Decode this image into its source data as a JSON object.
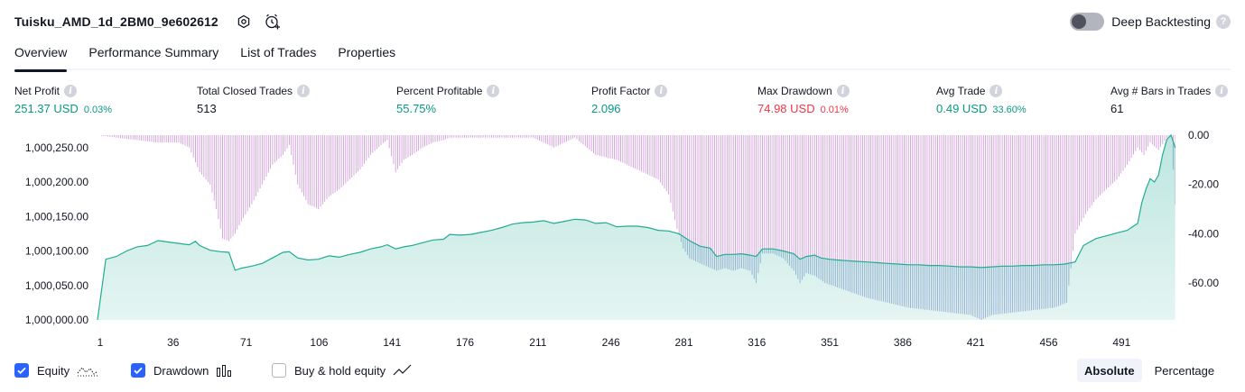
{
  "header": {
    "strategy_name": "Tuisku_AMD_1d_2BM0_9e602612",
    "deep_backtesting_label": "Deep Backtesting"
  },
  "tabs": [
    {
      "label": "Overview",
      "active": true
    },
    {
      "label": "Performance Summary",
      "active": false
    },
    {
      "label": "List of Trades",
      "active": false
    },
    {
      "label": "Properties",
      "active": false
    }
  ],
  "metrics": {
    "net_profit": {
      "label": "Net Profit",
      "value": "251.37 USD",
      "pct": "0.03%"
    },
    "total_closed_trades": {
      "label": "Total Closed Trades",
      "value": "513"
    },
    "percent_profitable": {
      "label": "Percent Profitable",
      "value": "55.75%"
    },
    "profit_factor": {
      "label": "Profit Factor",
      "value": "2.096"
    },
    "max_drawdown": {
      "label": "Max Drawdown",
      "value": "74.98 USD",
      "pct": "0.01%"
    },
    "avg_trade": {
      "label": "Avg Trade",
      "value": "0.49 USD",
      "pct": "33.60%"
    },
    "avg_bars": {
      "label": "Avg # Bars in Trades",
      "value": "61"
    }
  },
  "legend": {
    "equity": "Equity",
    "drawdown": "Drawdown",
    "buy_hold": "Buy & hold equity"
  },
  "scale_toggle": {
    "absolute": "Absolute",
    "percentage": "Percentage",
    "selected": "absolute"
  },
  "colors": {
    "green": "#089981",
    "red": "#f23645",
    "equity_line": "#22ab94",
    "equity_fill": "#22ab94",
    "drawdown_bar": "#ce93d8",
    "accent": "#2962ff"
  },
  "chart_data": {
    "type": "area",
    "x_ticks": [
      1,
      36,
      71,
      106,
      141,
      176,
      211,
      246,
      281,
      316,
      351,
      386,
      421,
      456,
      491
    ],
    "x_range": [
      1,
      513
    ],
    "left_axis": {
      "ticks": [
        1000000,
        1000050,
        1000100,
        1000150,
        1000200,
        1000250
      ],
      "tick_labels": [
        "1,000,000.00",
        "1,000,050.00",
        "1,000,100.00",
        "1,000,150.00",
        "1,000,200.00",
        "1,000,250.00"
      ],
      "range": [
        1000000,
        1000268
      ]
    },
    "right_axis": {
      "ticks": [
        0,
        -20,
        -40,
        -60
      ],
      "tick_labels": [
        "0.00",
        "-20.00",
        "-40.00",
        "-60.00"
      ],
      "range": [
        -74.98,
        0
      ]
    },
    "series": [
      {
        "name": "Equity",
        "axis": "left",
        "points": [
          [
            1,
            1000000
          ],
          [
            5,
            1000088
          ],
          [
            10,
            1000092
          ],
          [
            15,
            1000100
          ],
          [
            20,
            1000106
          ],
          [
            25,
            1000108
          ],
          [
            30,
            1000115
          ],
          [
            35,
            1000113
          ],
          [
            40,
            1000111
          ],
          [
            45,
            1000109
          ],
          [
            48,
            1000114
          ],
          [
            50,
            1000108
          ],
          [
            55,
            1000101
          ],
          [
            60,
            1000099
          ],
          [
            64,
            1000098
          ],
          [
            67,
            1000072
          ],
          [
            70,
            1000075
          ],
          [
            75,
            1000078
          ],
          [
            80,
            1000082
          ],
          [
            85,
            1000090
          ],
          [
            90,
            1000098
          ],
          [
            93,
            1000099
          ],
          [
            97,
            1000090
          ],
          [
            102,
            1000087
          ],
          [
            107,
            1000088
          ],
          [
            112,
            1000093
          ],
          [
            117,
            1000091
          ],
          [
            122,
            1000095
          ],
          [
            127,
            1000098
          ],
          [
            132,
            1000103
          ],
          [
            137,
            1000106
          ],
          [
            140,
            1000109
          ],
          [
            144,
            1000103
          ],
          [
            148,
            1000106
          ],
          [
            152,
            1000108
          ],
          [
            157,
            1000112
          ],
          [
            162,
            1000116
          ],
          [
            167,
            1000117
          ],
          [
            170,
            1000124
          ],
          [
            175,
            1000123
          ],
          [
            180,
            1000124
          ],
          [
            185,
            1000127
          ],
          [
            190,
            1000130
          ],
          [
            195,
            1000134
          ],
          [
            200,
            1000139
          ],
          [
            205,
            1000141
          ],
          [
            210,
            1000142
          ],
          [
            215,
            1000144
          ],
          [
            220,
            1000140
          ],
          [
            225,
            1000143
          ],
          [
            230,
            1000146
          ],
          [
            235,
            1000145
          ],
          [
            240,
            1000140
          ],
          [
            245,
            1000141
          ],
          [
            250,
            1000135
          ],
          [
            255,
            1000136
          ],
          [
            260,
            1000136
          ],
          [
            265,
            1000134
          ],
          [
            270,
            1000130
          ],
          [
            275,
            1000129
          ],
          [
            280,
            1000125
          ],
          [
            285,
            1000115
          ],
          [
            290,
            1000107
          ],
          [
            295,
            1000104
          ],
          [
            298,
            1000092
          ],
          [
            302,
            1000095
          ],
          [
            306,
            1000095
          ],
          [
            310,
            1000096
          ],
          [
            314,
            1000094
          ],
          [
            317,
            1000092
          ],
          [
            320,
            1000103
          ],
          [
            325,
            1000103
          ],
          [
            330,
            1000100
          ],
          [
            335,
            1000096
          ],
          [
            338,
            1000088
          ],
          [
            341,
            1000092
          ],
          [
            345,
            1000094
          ],
          [
            348,
            1000090
          ],
          [
            352,
            1000088
          ],
          [
            356,
            1000087
          ],
          [
            360,
            1000086
          ],
          [
            365,
            1000085
          ],
          [
            370,
            1000084
          ],
          [
            375,
            1000083
          ],
          [
            380,
            1000082
          ],
          [
            385,
            1000081
          ],
          [
            390,
            1000080
          ],
          [
            395,
            1000080
          ],
          [
            400,
            1000079
          ],
          [
            405,
            1000079
          ],
          [
            410,
            1000078
          ],
          [
            415,
            1000077
          ],
          [
            420,
            1000077
          ],
          [
            425,
            1000076
          ],
          [
            430,
            1000077
          ],
          [
            435,
            1000078
          ],
          [
            440,
            1000078
          ],
          [
            445,
            1000079
          ],
          [
            450,
            1000079
          ],
          [
            455,
            1000080
          ],
          [
            460,
            1000080
          ],
          [
            465,
            1000081
          ],
          [
            470,
            1000084
          ],
          [
            474,
            1000108
          ],
          [
            480,
            1000118
          ],
          [
            485,
            1000122
          ],
          [
            490,
            1000126
          ],
          [
            495,
            1000130
          ],
          [
            500,
            1000140
          ],
          [
            502,
            1000170
          ],
          [
            504,
            1000190
          ],
          [
            506,
            1000205
          ],
          [
            508,
            1000200
          ],
          [
            510,
            1000210
          ],
          [
            512,
            1000240
          ],
          [
            514,
            1000262
          ],
          [
            516,
            1000268
          ],
          [
            518,
            1000250
          ]
        ]
      },
      {
        "name": "Drawdown",
        "axis": "right",
        "points": [
          [
            1,
            0
          ],
          [
            10,
            -1
          ],
          [
            20,
            -2
          ],
          [
            30,
            -3
          ],
          [
            40,
            -3
          ],
          [
            45,
            -5
          ],
          [
            50,
            -15
          ],
          [
            55,
            -20
          ],
          [
            58,
            -30
          ],
          [
            61,
            -42
          ],
          [
            64,
            -43
          ],
          [
            67,
            -40
          ],
          [
            70,
            -35
          ],
          [
            75,
            -28
          ],
          [
            80,
            -20
          ],
          [
            85,
            -12
          ],
          [
            90,
            -8
          ],
          [
            93,
            -4
          ],
          [
            97,
            -20
          ],
          [
            102,
            -28
          ],
          [
            107,
            -30
          ],
          [
            112,
            -25
          ],
          [
            117,
            -22
          ],
          [
            122,
            -18
          ],
          [
            127,
            -14
          ],
          [
            132,
            -8
          ],
          [
            137,
            -4
          ],
          [
            140,
            -2
          ],
          [
            144,
            -15
          ],
          [
            148,
            -10
          ],
          [
            152,
            -8
          ],
          [
            157,
            -5
          ],
          [
            162,
            -3
          ],
          [
            167,
            -2
          ],
          [
            170,
            -1
          ],
          [
            180,
            -1
          ],
          [
            190,
            -1
          ],
          [
            200,
            -1
          ],
          [
            210,
            -1
          ],
          [
            215,
            -3
          ],
          [
            220,
            -5
          ],
          [
            230,
            -1
          ],
          [
            240,
            -8
          ],
          [
            250,
            -10
          ],
          [
            255,
            -12
          ],
          [
            260,
            -14
          ],
          [
            265,
            -16
          ],
          [
            270,
            -18
          ],
          [
            275,
            -24
          ],
          [
            279,
            -38
          ],
          [
            282,
            -46
          ],
          [
            285,
            -50
          ],
          [
            290,
            -52
          ],
          [
            298,
            -55
          ],
          [
            302,
            -54
          ],
          [
            306,
            -55
          ],
          [
            310,
            -54
          ],
          [
            314,
            -55
          ],
          [
            317,
            -60
          ],
          [
            320,
            -48
          ],
          [
            325,
            -48
          ],
          [
            330,
            -50
          ],
          [
            335,
            -55
          ],
          [
            338,
            -60
          ],
          [
            341,
            -56
          ],
          [
            345,
            -57
          ],
          [
            350,
            -60
          ],
          [
            360,
            -63
          ],
          [
            370,
            -66
          ],
          [
            380,
            -68
          ],
          [
            390,
            -70
          ],
          [
            400,
            -71
          ],
          [
            410,
            -72
          ],
          [
            420,
            -73
          ],
          [
            425,
            -74.98
          ],
          [
            430,
            -73
          ],
          [
            440,
            -72
          ],
          [
            450,
            -71
          ],
          [
            460,
            -70
          ],
          [
            466,
            -68
          ],
          [
            470,
            -40
          ],
          [
            475,
            -32
          ],
          [
            480,
            -26
          ],
          [
            485,
            -22
          ],
          [
            490,
            -18
          ],
          [
            495,
            -12
          ],
          [
            500,
            -5
          ],
          [
            503,
            -8
          ],
          [
            506,
            -3
          ],
          [
            510,
            -6
          ],
          [
            514,
            -1
          ],
          [
            516,
            0
          ],
          [
            518,
            -28
          ]
        ]
      }
    ]
  }
}
